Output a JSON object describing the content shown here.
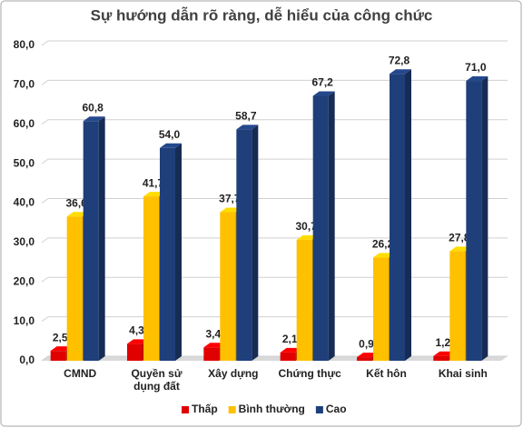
{
  "chart_data": {
    "type": "bar3d",
    "title": "Sự hướng dẫn rõ ràng, dễ hiểu của công chức",
    "categories": [
      "CMND",
      "Quyền sử dụng đất",
      "Xây dựng",
      "Chứng thực",
      "Kết hôn",
      "Khai sinh"
    ],
    "series": [
      {
        "name": "Thấp",
        "color": "#e00000",
        "values": [
          2.5,
          4.3,
          3.4,
          2.1,
          0.9,
          1.2
        ],
        "value_labels": [
          "2,5",
          "4,3",
          "3,4",
          "2,1",
          "0,9",
          "1,2"
        ]
      },
      {
        "name": "Bình thường",
        "color": "#ffc000",
        "values": [
          36.6,
          41.7,
          37.7,
          30.7,
          26.2,
          27.8
        ],
        "value_labels": [
          "36,6",
          "41,7",
          "37,7",
          "30,7",
          "26,2",
          "27,8"
        ]
      },
      {
        "name": "Cao",
        "color": "#1f3f7a",
        "values": [
          60.8,
          54.0,
          58.7,
          67.2,
          72.8,
          71.0
        ],
        "value_labels": [
          "60,8",
          "54,0",
          "58,7",
          "67,2",
          "72,8",
          "71,0"
        ]
      }
    ],
    "ylim": [
      0,
      80
    ],
    "yticks": [
      {
        "value": 0,
        "label": "0,0"
      },
      {
        "value": 10,
        "label": "10,0"
      },
      {
        "value": 20,
        "label": "20,0"
      },
      {
        "value": 30,
        "label": "30,0"
      },
      {
        "value": 40,
        "label": "40,0"
      },
      {
        "value": 50,
        "label": "50,0"
      },
      {
        "value": 60,
        "label": "60,0"
      },
      {
        "value": 70,
        "label": "70,0"
      },
      {
        "value": 80,
        "label": "80,0"
      }
    ],
    "grid": true,
    "legend": "bottom"
  }
}
